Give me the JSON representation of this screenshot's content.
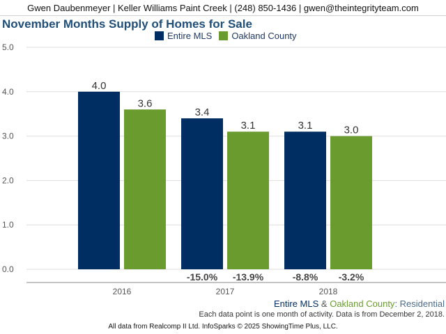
{
  "header": {
    "contact": "Gwen Daubenmeyer | Keller Williams Paint Creek | (248) 850-1436 | gwen@theintegrityteam.com"
  },
  "chart_title": "November Months Supply of Homes for Sale",
  "footer": {
    "mls_label": "Entire MLS",
    "amp": " & ",
    "county_label": "Oakland County",
    "colon": ": ",
    "type_label": "Residential",
    "note": "Each data point is one month of activity. Data is from December 2, 2018.",
    "source": "All data from Realcomp II Ltd. InfoSparks © 2025 ShowingTime Plus, LLC."
  },
  "colors": {
    "entire_mls": "#002d62",
    "oakland_county": "#6a9b2e"
  },
  "chart_data": {
    "type": "bar",
    "title": "November Months Supply of Homes for Sale",
    "categories": [
      "2016",
      "2017",
      "2018"
    ],
    "series": [
      {
        "name": "Entire MLS",
        "values": [
          4.0,
          3.4,
          3.1
        ],
        "value_labels": [
          "4.0",
          "3.4",
          "3.1"
        ],
        "pct_labels": [
          "",
          "-15.0%",
          "-8.8%"
        ]
      },
      {
        "name": "Oakland County",
        "values": [
          3.6,
          3.1,
          3.0
        ],
        "value_labels": [
          "3.6",
          "3.1",
          "3.0"
        ],
        "pct_labels": [
          "",
          "-13.9%",
          "-3.2%"
        ]
      }
    ],
    "y_ticks": [
      "0.0",
      "1.0",
      "2.0",
      "3.0",
      "4.0",
      "5.0"
    ],
    "ylim": [
      0,
      5
    ],
    "grid": true,
    "legend": "top-center"
  }
}
